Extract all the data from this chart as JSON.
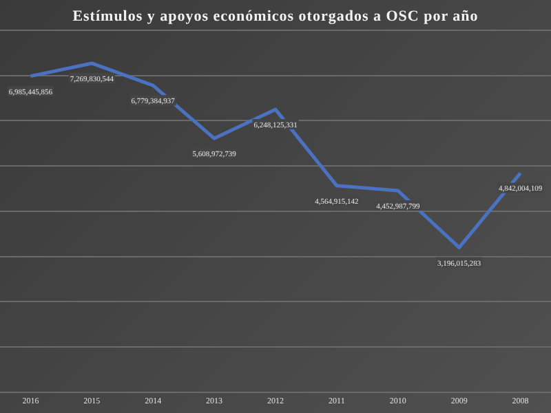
{
  "chart_data": {
    "type": "line",
    "title": "Estímulos y apoyos económicos otorgados a OSC por año",
    "categories": [
      "2016",
      "2015",
      "2014",
      "2013",
      "2012",
      "2011",
      "2010",
      "2009",
      "2008"
    ],
    "series": [
      {
        "color": "#4a72c0",
        "values": [
          6985445856,
          7269830544,
          6779384937,
          5608972739,
          6248125331,
          4564915142,
          4452987799,
          3196015283,
          4842004109
        ],
        "value_labels": [
          "6,985,445,856",
          "7,269,830,544",
          "6,779,384,937",
          "5,608,972,739",
          "6,248,125,331",
          "4,564,915,142",
          "4,452,987,799",
          "3,196,015,283",
          "4,842,004,109"
        ]
      }
    ],
    "grid": "y",
    "legend": false,
    "tick_labels": "x",
    "marker": "none",
    "line_style": "solid"
  }
}
